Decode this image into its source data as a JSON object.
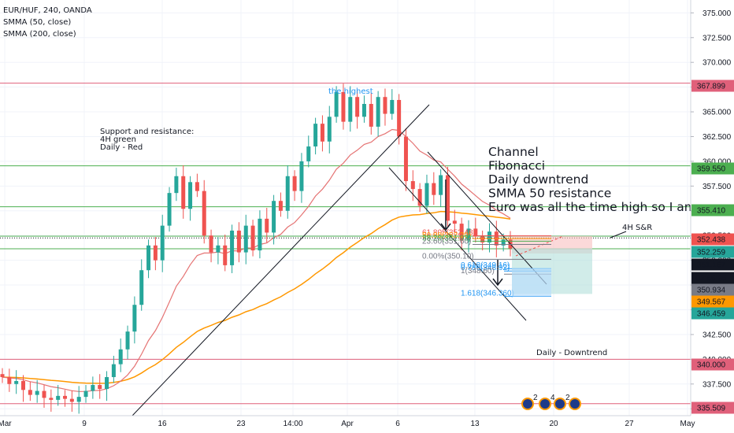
{
  "symbol": "EUR/HUF, 240, OANDA",
  "indicators": [
    "SMMA (50, close)",
    "SMMA (200, close)"
  ],
  "colors": {
    "up": "#26a69a",
    "down": "#ef5350",
    "smma50": "#e57373",
    "smma200": "#ff9800",
    "red_line": "#e0607a",
    "green_line": "#4caf50",
    "fib_blue": "#2196f3",
    "target_green": "#b2dfdb",
    "stop_red": "#f8c0c0"
  },
  "chart_data": {
    "type": "candlestick",
    "y_axis_ticks": [
      "375.000",
      "372.500",
      "370.000",
      "367.500",
      "365.000",
      "362.500",
      "360.000",
      "357.500",
      "355.000",
      "352.500",
      "350.000",
      "347.500",
      "345.000",
      "342.500",
      "340.000",
      "337.500",
      "335.000"
    ],
    "ylim": [
      334.3,
      376.3
    ],
    "x_axis_ticks": [
      "Mar",
      "9",
      "16",
      "23",
      "14:00",
      "Apr",
      "6",
      "13",
      "20",
      "27",
      "May"
    ],
    "price_labels": [
      {
        "text": "367.899",
        "color": "#e0607a"
      },
      {
        "text": "359.550",
        "color": "#4caf50"
      },
      {
        "text": "355.410",
        "color": "#4caf50"
      },
      {
        "text": "352.438",
        "color": "#ef5350"
      },
      {
        "text": "352.259",
        "color": "#26a69a"
      },
      {
        "text": "351.167",
        "color": "#131722"
      },
      {
        "text": "02:56:35",
        "color": "#131722"
      },
      {
        "text": "350.934",
        "color": "#787b86"
      },
      {
        "text": "349.567",
        "color": "#ff9800"
      },
      {
        "text": "346.459",
        "color": "#26a69a"
      },
      {
        "text": "340.000",
        "color": "#e0607a"
      },
      {
        "text": "335.509",
        "color": "#e0607a"
      }
    ],
    "horizontal_levels": [
      {
        "value": 367.899,
        "type": "daily-red"
      },
      {
        "value": 359.55,
        "type": "4h-green"
      },
      {
        "value": 355.41,
        "type": "4h-green"
      },
      {
        "value": 352.438,
        "type": "4h-green"
      },
      {
        "value": 351.167,
        "type": "4h-green"
      },
      {
        "value": 340.0,
        "type": "daily-red"
      },
      {
        "value": 335.509,
        "type": "daily-red"
      }
    ],
    "close_series": [
      338.2,
      337.5,
      337.8,
      336.9,
      336.4,
      336.8,
      336.1,
      335.9,
      336.3,
      336.0,
      335.7,
      336.2,
      336.8,
      337.4,
      337.0,
      338.2,
      339.5,
      341.0,
      342.8,
      345.5,
      349.0,
      351.5,
      350.0,
      353.5,
      356.8,
      358.5,
      355.2,
      357.9,
      357.0,
      352.5,
      350.8,
      351.5,
      349.5,
      353.0,
      350.8,
      353.5,
      351.0,
      354.2,
      352.8,
      356.0,
      355.0,
      358.5,
      357.0,
      360.0,
      361.5,
      363.8,
      362.0,
      364.5,
      367.0,
      364.0,
      366.5,
      364.5,
      365.8,
      363.5,
      366.5,
      364.8,
      366.2,
      362.5,
      358.0,
      357.2,
      355.5,
      357.8,
      356.6,
      358.6,
      354.0,
      353.7,
      352.0,
      353.2,
      352.4,
      351.8,
      352.9,
      351.5,
      352.1,
      351.2
    ],
    "fib_levels": [
      {
        "ratio": "61.805",
        "value": 352.48
      },
      {
        "ratio": "50",
        "value": 352.2
      },
      {
        "ratio": "38.2",
        "value": 351.93
      },
      {
        "ratio": "23.6",
        "value": 351.6
      },
      {
        "ratio": "0.00",
        "value": 350.1
      },
      {
        "ratio": "0.618",
        "value": 349.16
      },
      {
        "ratio": "0.786",
        "value": 348.92
      },
      {
        "ratio": "1",
        "value": 348.6
      },
      {
        "ratio": "1.618",
        "value": 346.36
      }
    ],
    "fib_labels": [
      "61.805(352.48",
      "50.00(352.20)",
      "38.20(351.93)",
      "23.60(351.60)",
      "0.00%(350.10)",
      "0.618(349.16)",
      "0.786(348.92)",
      "1(348.60)",
      "1.618(346.360)"
    ],
    "annotations": {
      "highest": "the highest",
      "sr_lines": [
        "Support and resistance:",
        "4H green",
        "Daily - Red"
      ],
      "analysis": [
        "Channel",
        "Fibonacci",
        "Daily downtrend",
        "SMMA 50 resistance",
        "Euro was all the time high so I am"
      ],
      "sr_4h": "4H S&R",
      "daily_downtrend": "Daily - Downtrend"
    }
  },
  "event_icons": [
    "2",
    "4",
    "2"
  ]
}
